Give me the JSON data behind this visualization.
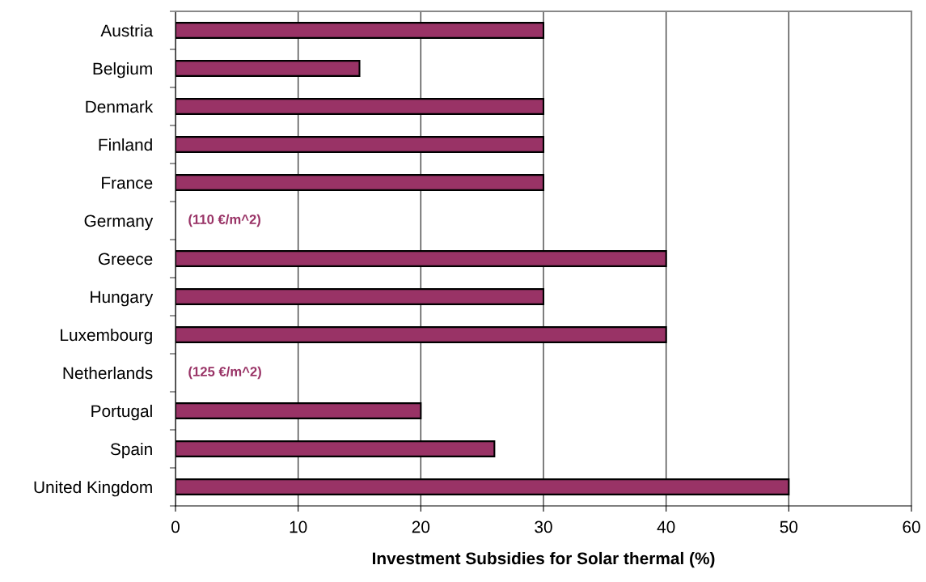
{
  "chart_data": {
    "type": "bar",
    "orientation": "horizontal",
    "xlabel": "Investment Subsidies for Solar thermal (%)",
    "categories": [
      "Austria",
      "Belgium",
      "Denmark",
      "Finland",
      "France",
      "Germany",
      "Greece",
      "Hungary",
      "Luxembourg",
      "Netherlands",
      "Portugal",
      "Spain",
      "United Kingdom"
    ],
    "values": [
      30,
      15,
      30,
      30,
      30,
      null,
      40,
      30,
      40,
      null,
      20,
      26,
      50
    ],
    "color": "#993366",
    "xlim": [
      0,
      60
    ],
    "xticks": [
      0,
      10,
      20,
      30,
      40,
      50,
      60
    ],
    "grid": "x",
    "legend": false,
    "annotations": [
      "(110 €/m^2)",
      "(125 €/m^2)"
    ]
  }
}
